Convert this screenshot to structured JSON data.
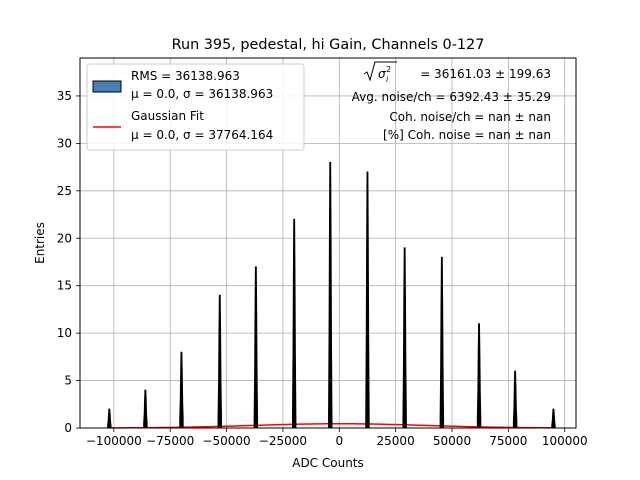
{
  "chart_data": {
    "type": "bar",
    "title": "Run 395, pedestal, hi Gain, Channels 0-127",
    "xlabel": "ADC Counts",
    "ylabel": "Entries",
    "xlim": [
      -115000,
      105000
    ],
    "ylim": [
      0,
      39
    ],
    "grid": true,
    "xticks": [
      -100000,
      -75000,
      -50000,
      -25000,
      0,
      25000,
      50000,
      75000,
      100000
    ],
    "xtick_labels": [
      "−100000",
      "−75000",
      "−50000",
      "−25000",
      "0",
      "25000",
      "50000",
      "75000",
      "100000"
    ],
    "yticks": [
      0,
      5,
      10,
      15,
      20,
      25,
      30,
      35
    ],
    "ytick_labels": [
      "0",
      "5",
      "10",
      "15",
      "20",
      "25",
      "30",
      "35"
    ],
    "series": [
      {
        "name": "RMS = 36138.963",
        "subtitle": "μ = 0.0, σ = 36138.963",
        "kind": "histogram",
        "color": "#000000",
        "legend_color": "#4a7fb5",
        "peaks": [
          {
            "x": -102000,
            "height": 2
          },
          {
            "x": -86000,
            "height": 4
          },
          {
            "x": -70000,
            "height": 8
          },
          {
            "x": -53000,
            "height": 14
          },
          {
            "x": -37000,
            "height": 17
          },
          {
            "x": -20000,
            "height": 22
          },
          {
            "x": -4000,
            "height": 28
          },
          {
            "x": 12500,
            "height": 27
          },
          {
            "x": 29000,
            "height": 19
          },
          {
            "x": 45500,
            "height": 18
          },
          {
            "x": 62000,
            "height": 11
          },
          {
            "x": 78000,
            "height": 6
          },
          {
            "x": 95000,
            "height": 2
          }
        ]
      },
      {
        "name": "Gaussian Fit",
        "subtitle": "μ = 0.0, σ = 37764.164",
        "kind": "gaussian",
        "color": "#ff0000",
        "mu": 0.0,
        "sigma": 37764.164,
        "peak": 0.45
      }
    ],
    "annotations": [
      {
        "text": " = 36161.03 ± 199.63"
      },
      {
        "text": "Avg. noise/ch = 6392.43 ± 35.29"
      },
      {
        "text": "Coh. noise/ch = nan ± nan"
      },
      {
        "text": "[%] Coh. noise = nan ± nan"
      }
    ],
    "legend_placement": "top-left"
  }
}
